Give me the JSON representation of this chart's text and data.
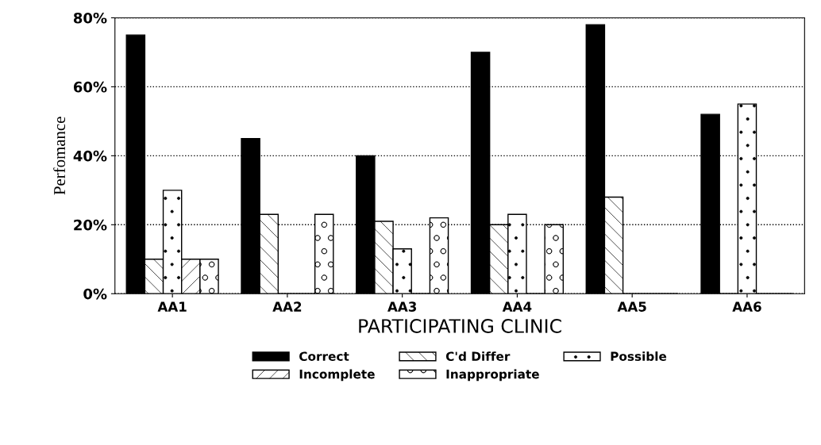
{
  "chart_data": {
    "type": "bar",
    "xlabel": "PARTICIPATING CLINIC",
    "ylabel": "Perfomance",
    "categories": [
      "AA1",
      "AA2",
      "AA3",
      "AA4",
      "AA5",
      "AA6"
    ],
    "series": [
      {
        "name": "Correct",
        "color": "#000000",
        "values": [
          75,
          45,
          40,
          70,
          78,
          52
        ]
      },
      {
        "name": "C'd Differ",
        "color": "#000000",
        "values": [
          10,
          23,
          21,
          20,
          28,
          0
        ]
      },
      {
        "name": "Possible",
        "color": "#000000",
        "values": [
          30,
          0,
          13,
          23,
          0,
          55
        ]
      },
      {
        "name": "Incomplete",
        "color": "#000000",
        "values": [
          10,
          0,
          0,
          0,
          0,
          0
        ]
      },
      {
        "name": "Inappropriate",
        "color": "#000000",
        "values": [
          10,
          23,
          22,
          20,
          0,
          0
        ]
      }
    ],
    "ylim": [
      0,
      80
    ],
    "yticks": [
      {
        "value": 0,
        "label": "0%"
      },
      {
        "value": 20,
        "label": "20%"
      },
      {
        "value": 40,
        "label": "40%"
      },
      {
        "value": 60,
        "label": "60%"
      },
      {
        "value": 80,
        "label": "80%"
      }
    ],
    "grid": "y",
    "legend": "bottom"
  }
}
